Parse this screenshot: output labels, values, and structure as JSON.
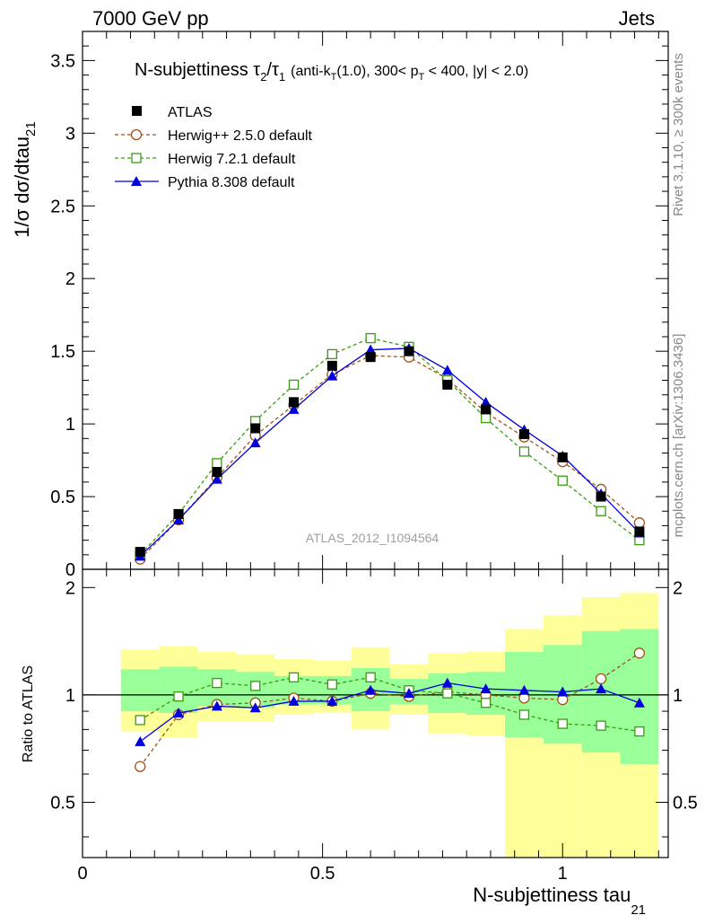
{
  "header": {
    "left": "7000 GeV pp",
    "right": "Jets"
  },
  "side_labels": {
    "rivet": "Rivet 3.1.10, ≥ 300k events",
    "mcplots": "mcplots.cern.ch [arXiv:1306.3436]"
  },
  "plot_title": {
    "main": "N-subjettiness τ",
    "sub2": "2",
    "slash": "/τ",
    "sub1": "1",
    "cuts_a": "(anti-k",
    "cuts_t": "T",
    "cuts_b": "(1.0), 300< p",
    "cuts_pt": "T",
    "cuts_c": " < 400, |y| < 2.0)"
  },
  "y_title": {
    "main": "1/σ dσ/dtau",
    "sub": "21"
  },
  "x_title": {
    "main": "N-subjettiness tau",
    "sub": "21"
  },
  "ratio_ylabel": "Ratio to ATLAS",
  "watermark": "ATLAS_2012_I1094564",
  "legend": [
    {
      "label": "ATLAS",
      "key": "atlas"
    },
    {
      "label": "Herwig++ 2.5.0 default",
      "key": "herwigpp"
    },
    {
      "label": "Herwig 7.2.1 default",
      "key": "herwig7"
    },
    {
      "label": "Pythia 8.308 default",
      "key": "pythia"
    }
  ],
  "colors": {
    "atlas": "#000000",
    "herwigpp": "#a0521b",
    "herwig7": "#3b9a12",
    "pythia": "#0000dd",
    "band_yellow": "#ffff99",
    "band_green": "#99ff99"
  },
  "chart_data": [
    {
      "type": "line",
      "panel": "main",
      "xlim": [
        0,
        1.22
      ],
      "ylim": [
        0,
        3.7
      ],
      "yticks": [
        0,
        0.5,
        1,
        1.5,
        2,
        2.5,
        3,
        3.5
      ],
      "ytick_labels": [
        "0",
        "0.5",
        "1",
        "1.5",
        "2",
        "2.5",
        "3",
        "3.5"
      ],
      "x": [
        0.12,
        0.2,
        0.28,
        0.36,
        0.44,
        0.52,
        0.6,
        0.68,
        0.76,
        0.84,
        0.92,
        1.0,
        1.08,
        1.16
      ],
      "series": [
        {
          "name": "ATLAS",
          "key": "atlas",
          "values": [
            0.12,
            0.38,
            0.67,
            0.97,
            1.15,
            1.4,
            1.46,
            1.5,
            1.27,
            1.1,
            0.93,
            0.77,
            0.5,
            0.26
          ]
        },
        {
          "name": "Herwig++ 2.5.0 default",
          "key": "herwigpp",
          "values": [
            0.07,
            0.34,
            0.63,
            0.92,
            1.13,
            1.34,
            1.47,
            1.46,
            1.31,
            1.08,
            0.91,
            0.74,
            0.55,
            0.32
          ]
        },
        {
          "name": "Herwig 7.2.1 default",
          "key": "herwig7",
          "values": [
            0.1,
            0.38,
            0.73,
            1.02,
            1.27,
            1.48,
            1.59,
            1.53,
            1.3,
            1.04,
            0.81,
            0.61,
            0.4,
            0.2
          ]
        },
        {
          "name": "Pythia 8.308 default",
          "key": "pythia",
          "values": [
            0.09,
            0.34,
            0.62,
            0.87,
            1.1,
            1.33,
            1.51,
            1.52,
            1.37,
            1.15,
            0.96,
            0.78,
            0.52,
            0.25
          ]
        }
      ]
    },
    {
      "type": "line",
      "panel": "ratio",
      "xlim": [
        0,
        1.22
      ],
      "xticks": [
        0,
        0.5,
        1
      ],
      "xtick_labels": [
        "0",
        "0.5",
        "1"
      ],
      "ylim": [
        0.35,
        2.25
      ],
      "yticks": [
        0.5,
        1,
        2
      ],
      "ytick_labels": [
        "0.5",
        "1",
        "2"
      ],
      "reference_line": 1,
      "bin_edges": [
        0.08,
        0.16,
        0.24,
        0.32,
        0.4,
        0.48,
        0.56,
        0.64,
        0.72,
        0.8,
        0.88,
        0.96,
        1.04,
        1.12,
        1.2
      ],
      "band_yellow": [
        [
          0.79,
          1.34
        ],
        [
          0.76,
          1.37
        ],
        [
          0.84,
          1.32
        ],
        [
          0.84,
          1.3
        ],
        [
          0.88,
          1.26
        ],
        [
          0.89,
          1.25
        ],
        [
          0.8,
          1.36
        ],
        [
          0.88,
          1.22
        ],
        [
          0.78,
          1.31
        ],
        [
          0.77,
          1.32
        ],
        [
          0.35,
          1.53
        ],
        [
          0.35,
          1.67
        ],
        [
          0.35,
          1.88
        ],
        [
          0.35,
          1.93
        ]
      ],
      "band_green": [
        [
          0.9,
          1.18
        ],
        [
          0.89,
          1.2
        ],
        [
          0.93,
          1.18
        ],
        [
          0.92,
          1.16
        ],
        [
          0.94,
          1.13
        ],
        [
          0.94,
          1.13
        ],
        [
          0.9,
          1.19
        ],
        [
          0.94,
          1.11
        ],
        [
          0.89,
          1.15
        ],
        [
          0.88,
          1.16
        ],
        [
          0.76,
          1.32
        ],
        [
          0.73,
          1.38
        ],
        [
          0.69,
          1.51
        ],
        [
          0.64,
          1.53
        ]
      ],
      "x": [
        0.12,
        0.2,
        0.28,
        0.36,
        0.44,
        0.52,
        0.6,
        0.68,
        0.76,
        0.84,
        0.92,
        1.0,
        1.08,
        1.16
      ],
      "series": [
        {
          "name": "Herwig++ 2.5.0 default",
          "key": "herwigpp",
          "values": [
            0.63,
            0.88,
            0.94,
            0.95,
            0.98,
            0.96,
            1.01,
            0.99,
            1.02,
            1.0,
            0.98,
            0.97,
            1.11,
            1.31
          ]
        },
        {
          "name": "Herwig 7.2.1 default",
          "key": "herwig7",
          "values": [
            0.85,
            0.99,
            1.08,
            1.06,
            1.12,
            1.07,
            1.12,
            1.03,
            1.01,
            0.95,
            0.88,
            0.83,
            0.82,
            0.79
          ]
        },
        {
          "name": "Pythia 8.308 default",
          "key": "pythia",
          "values": [
            0.74,
            0.89,
            0.93,
            0.92,
            0.96,
            0.96,
            1.03,
            1.01,
            1.08,
            1.04,
            1.03,
            1.02,
            1.04,
            0.95
          ]
        }
      ]
    }
  ]
}
